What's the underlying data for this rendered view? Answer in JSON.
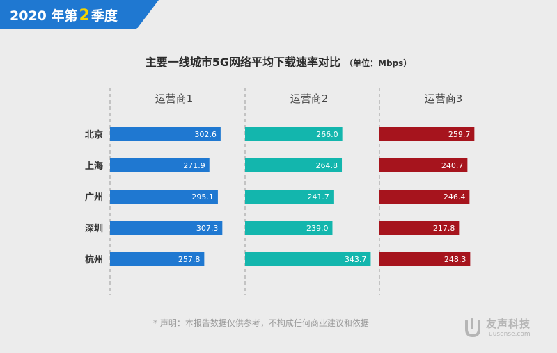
{
  "badge": {
    "year_label": "2020 年第",
    "quarter": "2",
    "suffix": "季度"
  },
  "title": "主要一线城市5G网络平均下载速率对比",
  "unit": "（单位：Mbps）",
  "disclaimer": "* 声明：本报告数据仅供参考，不构成任何商业建议和依据",
  "logo": {
    "name": "友声科技",
    "url": "uusense.com"
  },
  "colors": {
    "bg": "#ececec",
    "badge": "#1f78d1",
    "quarter": "#f5d400",
    "operator1": "#1f78d1",
    "operator2": "#13b6ad",
    "operator3": "#a6141d"
  },
  "chart_data": {
    "type": "bar",
    "orientation": "horizontal",
    "categories": [
      "北京",
      "上海",
      "广州",
      "深圳",
      "杭州"
    ],
    "series": [
      {
        "name": "运营商1",
        "values": [
          302.6,
          271.9,
          295.1,
          307.3,
          257.8
        ]
      },
      {
        "name": "运营商2",
        "values": [
          266.0,
          264.8,
          241.7,
          239.0,
          343.7
        ]
      },
      {
        "name": "运营商3",
        "values": [
          259.7,
          240.7,
          246.4,
          217.8,
          248.3
        ]
      }
    ],
    "xlim": [
      0,
      560
    ],
    "grid": false
  }
}
